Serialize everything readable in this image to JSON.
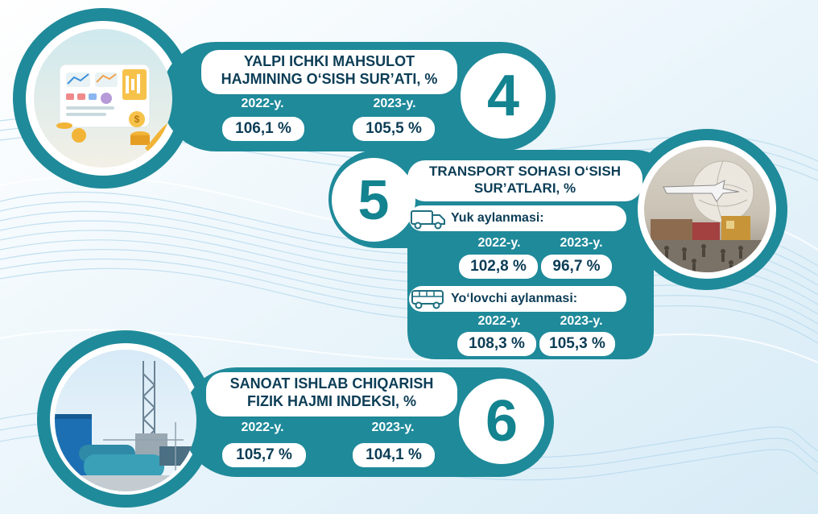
{
  "colors": {
    "teal": "#1f8a9a",
    "teal_dark": "#176f7e",
    "navy": "#0c3d56",
    "white": "#ffffff"
  },
  "blocks": [
    {
      "number": "4",
      "title_line1": "YALPI ICHKI MAHSULOT",
      "title_line2": "HAJMINING O‘SISH SUR’ATI, %",
      "year1": "2022-y.",
      "year2": "2023-y.",
      "value1": "106,1 %",
      "value2": "105,5 %",
      "image_icon": "finance-dashboard-image"
    },
    {
      "number": "5",
      "title_line1": "TRANSPORT  SOHASI O‘SISH",
      "title_line2": "SUR’ATLARI, %",
      "image_icon": "transport-globe-image",
      "rows": [
        {
          "label": "Yuk aylanmasi:",
          "icon": "truck-icon",
          "year1": "2022-y.",
          "year2": "2023-y.",
          "value1": "102,8 %",
          "value2": "96,7 %"
        },
        {
          "label": "Yo‘lovchi aylanmasi:",
          "icon": "bus-icon",
          "year1": "2022-y.",
          "year2": "2023-y.",
          "value1": "108,3 %",
          "value2": "105,3 %"
        }
      ]
    },
    {
      "number": "6",
      "title_line1": "SANOAT ISHLAB CHIQARISH",
      "title_line2": "FIZIK HAJMI INDEKSI, %",
      "year1": "2022-y.",
      "year2": "2023-y.",
      "value1": "105,7 %",
      "value2": "104,1 %",
      "image_icon": "industrial-plant-image"
    }
  ]
}
